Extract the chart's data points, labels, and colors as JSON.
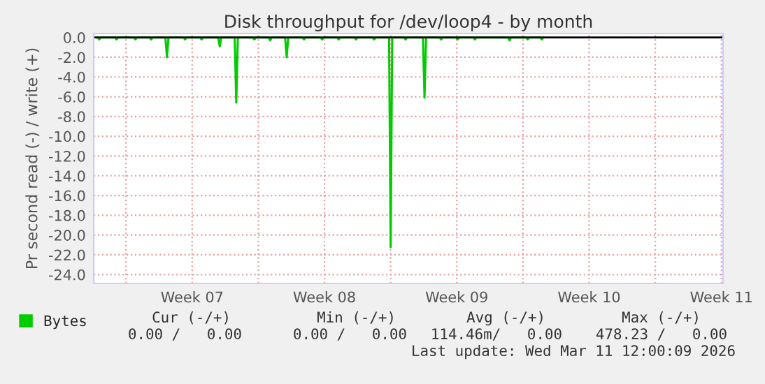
{
  "chart_data": {
    "type": "line",
    "title": "Disk throughput for /dev/loop4 - by month",
    "ylabel": "Pr second read (-) / write (+)",
    "x": [
      "2026-02-07T10:00",
      "2026-02-07T12:00",
      "2026-02-07T14:00",
      "2026-02-07T16:00",
      "2026-02-08T10:00",
      "2026-02-08T12:00",
      "2026-02-08T14:00",
      "2026-02-09T10:00",
      "2026-02-09T12:00",
      "2026-02-09T14:00",
      "2026-02-10T06:00",
      "2026-02-10T08:00",
      "2026-02-10T10:00",
      "2026-02-11T02:00",
      "2026-02-11T04:00",
      "2026-02-11T06:00",
      "2026-02-12T01:00",
      "2026-02-12T03:00",
      "2026-02-12T05:00",
      "2026-02-12T22:00",
      "2026-02-13T00:00",
      "2026-02-13T02:00",
      "2026-02-13T21:00",
      "2026-02-13T23:00",
      "2026-02-14T01:00",
      "2026-02-14T18:00",
      "2026-02-14T20:00",
      "2026-02-14T22:00",
      "2026-02-15T17:00",
      "2026-02-15T19:00",
      "2026-02-15T21:00",
      "2026-02-16T13:00",
      "2026-02-16T15:00",
      "2026-02-16T17:00",
      "2026-02-17T10:00",
      "2026-02-17T12:00",
      "2026-02-17T14:00",
      "2026-02-18T08:00",
      "2026-02-18T10:00",
      "2026-02-18T12:00",
      "2026-02-19T07:00",
      "2026-02-19T09:00",
      "2026-02-19T11:00",
      "2026-02-20T04:00",
      "2026-02-20T06:00",
      "2026-02-20T08:00",
      "2026-02-21T02:00",
      "2026-02-21T04:00",
      "2026-02-21T06:00",
      "2026-02-22T01:00",
      "2026-02-22T03:00",
      "2026-02-22T05:00",
      "2026-02-22T22:00",
      "2026-02-23T00:00",
      "2026-02-23T02:00",
      "2026-02-23T17:00",
      "2026-02-23T19:00",
      "2026-02-23T21:00",
      "2026-02-24T17:00",
      "2026-02-24T19:00",
      "2026-02-24T21:00",
      "2026-02-25T14:00",
      "2026-02-25T16:00",
      "2026-02-25T18:00",
      "2026-02-26T11:00",
      "2026-02-26T13:00",
      "2026-02-26T15:00",
      "2026-02-27T09:00",
      "2026-02-27T11:00",
      "2026-02-27T13:00",
      "2026-03-01T05:00",
      "2026-03-01T07:00",
      "2026-03-01T09:00",
      "2026-03-02T04:00",
      "2026-03-02T06:00",
      "2026-03-02T08:00",
      "2026-03-02T22:00",
      "2026-03-03T00:00",
      "2026-03-03T02:00"
    ],
    "series": [
      {
        "name": "Bytes",
        "color": "#00cc00",
        "values": [
          0,
          0,
          -0.2,
          0,
          0,
          -0.2,
          0,
          0,
          -0.2,
          0,
          0,
          -0.2,
          0,
          0,
          -2.0,
          0,
          0,
          -0.2,
          0,
          0,
          -0.2,
          0,
          0,
          -0.9,
          0,
          0,
          -6.6,
          0,
          0,
          -0.2,
          0,
          0,
          -0.3,
          0,
          0,
          -2.0,
          0,
          0,
          -0.2,
          0,
          0,
          -0.2,
          0,
          0,
          -0.2,
          0,
          0,
          -0.2,
          0,
          0,
          -0.2,
          0,
          0,
          -21.2,
          0,
          0,
          -0.2,
          0,
          0,
          -6.1,
          0,
          0,
          -0.2,
          0,
          0,
          -0.2,
          0,
          0,
          -0.2,
          0,
          0,
          -0.3,
          0,
          0,
          -0.2,
          0,
          0,
          -0.2,
          0
        ]
      }
    ],
    "xlim": [
      "2026-02-07T07:00",
      "2026-03-12T14:00"
    ],
    "xticks": [
      {
        "value": "2026-02-09",
        "label": null
      },
      {
        "value": "2026-02-12T12:00",
        "label": "Week 07"
      },
      {
        "value": "2026-02-16",
        "label": null
      },
      {
        "value": "2026-02-19T12:00",
        "label": "Week 08"
      },
      {
        "value": "2026-02-23",
        "label": null
      },
      {
        "value": "2026-02-26T12:00",
        "label": "Week 09"
      },
      {
        "value": "2026-03-02",
        "label": null
      },
      {
        "value": "2026-03-05T12:00",
        "label": "Week 10"
      },
      {
        "value": "2026-03-09",
        "label": null
      },
      {
        "value": "2026-03-12T12:00",
        "label": "Week 11"
      }
    ],
    "ylim": [
      -24.9,
      0.4
    ],
    "yticks": [
      {
        "value": 0,
        "label": "0.0"
      },
      {
        "value": -2,
        "label": "-2.0"
      },
      {
        "value": -4,
        "label": "-4.0"
      },
      {
        "value": -6,
        "label": "-6.0"
      },
      {
        "value": -8,
        "label": "-8.0"
      },
      {
        "value": -10,
        "label": "-10.0"
      },
      {
        "value": -12,
        "label": "-12.0"
      },
      {
        "value": -14,
        "label": "-14.0"
      },
      {
        "value": -16,
        "label": "-16.0"
      },
      {
        "value": -18,
        "label": "-18.0"
      },
      {
        "value": -20,
        "label": "-20.0"
      },
      {
        "value": -22,
        "label": "-22.0"
      },
      {
        "value": -24,
        "label": "-24.0"
      }
    ],
    "ref_lines": [
      {
        "axis": "y",
        "value": 0,
        "color": "#000000"
      }
    ],
    "grid": true,
    "legend": "bottom left",
    "marker": "none",
    "line_style": "solid",
    "annotations": [
      "Cur (-/+)",
      "Min (-/+)",
      "Avg (-/+)",
      "Max (-/+)",
      "0.00 /   0.00",
      "0.00 /   0.00",
      "114.46m/   0.00",
      "478.23 /   0.00",
      "Last update: Wed Mar 11 12:00:09 2026"
    ]
  }
}
